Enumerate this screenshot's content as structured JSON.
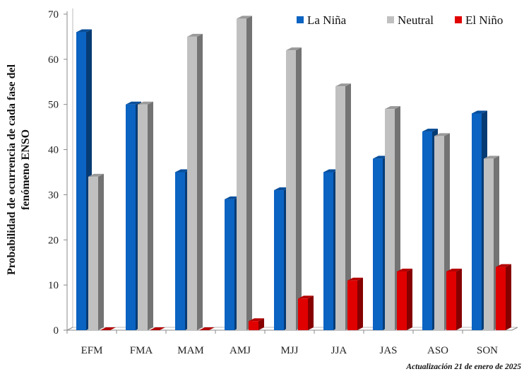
{
  "chart_data": {
    "type": "bar",
    "categories": [
      "EFM",
      "FMA",
      "MAM",
      "AMJ",
      "MJJ",
      "JJA",
      "JAS",
      "ASO",
      "SON"
    ],
    "series": [
      {
        "name": "La Niña",
        "color": "#0b63c2",
        "values": [
          66,
          50,
          35,
          29,
          31,
          35,
          38,
          44,
          48
        ]
      },
      {
        "name": "Neutral",
        "color": "#c0c0c0",
        "values": [
          34,
          50,
          65,
          69,
          62,
          54,
          49,
          43,
          38
        ]
      },
      {
        "name": "El Niño",
        "color": "#e10000",
        "values": [
          0,
          0,
          0,
          2,
          7,
          11,
          13,
          13,
          14
        ]
      }
    ],
    "ylabel_line1": "Probabilidad de ocurrencia de cada fase del",
    "ylabel_line2": "fenómeno ENSO",
    "ylim": [
      0,
      70
    ],
    "yticks": [
      0,
      10,
      20,
      30,
      40,
      50,
      60,
      70
    ],
    "grid": false,
    "legend_position": "top-right",
    "annotation": "Actualización 21 de enero de 2025"
  }
}
